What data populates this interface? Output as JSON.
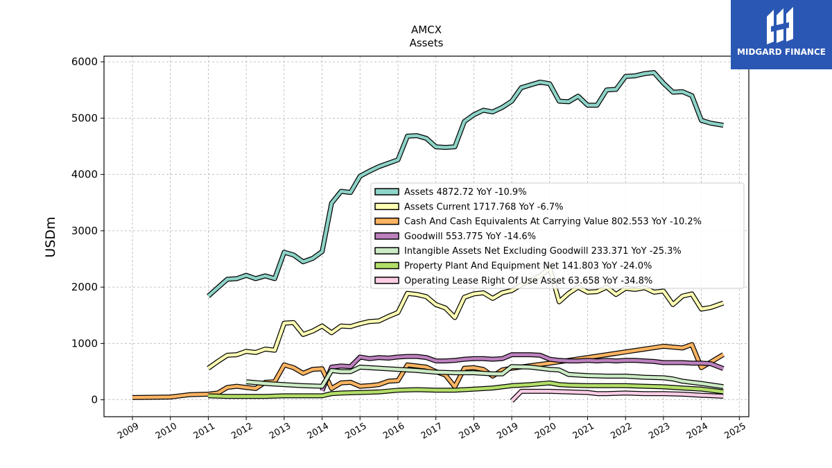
{
  "brand": {
    "name": "MIDGARD FINANCE",
    "bg_color": "#2a57b3"
  },
  "chart_data": {
    "type": "line",
    "title": "AMCX",
    "subtitle": "Assets",
    "ylabel": "USDm",
    "xlabel": "",
    "xlim": [
      2008.25,
      2025.25
    ],
    "ylim": [
      -300,
      6100
    ],
    "yticks": [
      0,
      1000,
      2000,
      3000,
      4000,
      5000,
      6000
    ],
    "xticks": [
      2009,
      2010,
      2011,
      2012,
      2013,
      2014,
      2015,
      2016,
      2017,
      2018,
      2019,
      2020,
      2021,
      2022,
      2023,
      2024,
      2025
    ],
    "grid": true,
    "legend_position": "center-right",
    "series": [
      {
        "name": "Assets",
        "legend": "Assets  4872.72 YoY -10.9%",
        "color": "#8dd3c7",
        "points": [
          [
            2011.0,
            1840
          ],
          [
            2011.25,
            1990
          ],
          [
            2011.5,
            2140
          ],
          [
            2011.75,
            2150
          ],
          [
            2012.0,
            2210
          ],
          [
            2012.25,
            2150
          ],
          [
            2012.5,
            2200
          ],
          [
            2012.75,
            2150
          ],
          [
            2013.0,
            2620
          ],
          [
            2013.25,
            2570
          ],
          [
            2013.5,
            2450
          ],
          [
            2013.75,
            2510
          ],
          [
            2014.0,
            2630
          ],
          [
            2014.25,
            3490
          ],
          [
            2014.5,
            3700
          ],
          [
            2014.75,
            3680
          ],
          [
            2015.0,
            3970
          ],
          [
            2015.25,
            4060
          ],
          [
            2015.5,
            4140
          ],
          [
            2015.75,
            4200
          ],
          [
            2016.0,
            4260
          ],
          [
            2016.25,
            4680
          ],
          [
            2016.5,
            4690
          ],
          [
            2016.75,
            4640
          ],
          [
            2017.0,
            4490
          ],
          [
            2017.25,
            4480
          ],
          [
            2017.5,
            4490
          ],
          [
            2017.75,
            4940
          ],
          [
            2018.0,
            5060
          ],
          [
            2018.25,
            5140
          ],
          [
            2018.5,
            5110
          ],
          [
            2018.75,
            5190
          ],
          [
            2019.0,
            5300
          ],
          [
            2019.25,
            5540
          ],
          [
            2019.5,
            5590
          ],
          [
            2019.75,
            5640
          ],
          [
            2020.0,
            5610
          ],
          [
            2020.25,
            5300
          ],
          [
            2020.5,
            5290
          ],
          [
            2020.75,
            5390
          ],
          [
            2021.0,
            5230
          ],
          [
            2021.25,
            5230
          ],
          [
            2021.5,
            5500
          ],
          [
            2021.75,
            5510
          ],
          [
            2022.0,
            5740
          ],
          [
            2022.25,
            5750
          ],
          [
            2022.5,
            5790
          ],
          [
            2022.75,
            5810
          ],
          [
            2023.0,
            5620
          ],
          [
            2023.25,
            5460
          ],
          [
            2023.5,
            5470
          ],
          [
            2023.75,
            5400
          ],
          [
            2024.0,
            4960
          ],
          [
            2024.25,
            4910
          ],
          [
            2024.58,
            4872.72
          ]
        ]
      },
      {
        "name": "Assets Current",
        "legend": "Assets Current  1717.768 YoY -6.7%",
        "color": "#ffffb3",
        "points": [
          [
            2011.0,
            560
          ],
          [
            2011.25,
            680
          ],
          [
            2011.5,
            790
          ],
          [
            2011.75,
            800
          ],
          [
            2012.0,
            860
          ],
          [
            2012.25,
            840
          ],
          [
            2012.5,
            900
          ],
          [
            2012.75,
            880
          ],
          [
            2013.0,
            1360
          ],
          [
            2013.25,
            1370
          ],
          [
            2013.5,
            1160
          ],
          [
            2013.75,
            1220
          ],
          [
            2014.0,
            1310
          ],
          [
            2014.25,
            1190
          ],
          [
            2014.5,
            1310
          ],
          [
            2014.75,
            1300
          ],
          [
            2015.0,
            1350
          ],
          [
            2015.25,
            1390
          ],
          [
            2015.5,
            1400
          ],
          [
            2015.75,
            1480
          ],
          [
            2016.0,
            1550
          ],
          [
            2016.25,
            1890
          ],
          [
            2016.5,
            1870
          ],
          [
            2016.75,
            1830
          ],
          [
            2017.0,
            1690
          ],
          [
            2017.25,
            1630
          ],
          [
            2017.5,
            1460
          ],
          [
            2017.75,
            1820
          ],
          [
            2018.0,
            1880
          ],
          [
            2018.25,
            1900
          ],
          [
            2018.5,
            1800
          ],
          [
            2018.75,
            1900
          ],
          [
            2019.0,
            1940
          ],
          [
            2019.25,
            2040
          ],
          [
            2019.5,
            2120
          ],
          [
            2019.75,
            2200
          ],
          [
            2020.0,
            2340
          ],
          [
            2020.25,
            1740
          ],
          [
            2020.5,
            1890
          ],
          [
            2020.75,
            2000
          ],
          [
            2021.0,
            1910
          ],
          [
            2021.25,
            1920
          ],
          [
            2021.5,
            2000
          ],
          [
            2021.75,
            1870
          ],
          [
            2022.0,
            1980
          ],
          [
            2022.25,
            1960
          ],
          [
            2022.5,
            1990
          ],
          [
            2022.75,
            1910
          ],
          [
            2023.0,
            1930
          ],
          [
            2023.25,
            1690
          ],
          [
            2023.5,
            1840
          ],
          [
            2023.75,
            1880
          ],
          [
            2024.0,
            1610
          ],
          [
            2024.25,
            1640
          ],
          [
            2024.58,
            1717.768
          ]
        ]
      },
      {
        "name": "Cash And Cash Equivalents At Carrying Value",
        "legend": "Cash And Cash Equivalents At Carrying Value  802.553 YoY -10.2%",
        "color": "#fdb462",
        "points": [
          [
            2009.0,
            40
          ],
          [
            2010.0,
            50
          ],
          [
            2010.5,
            90
          ],
          [
            2011.0,
            100
          ],
          [
            2011.25,
            120
          ],
          [
            2011.5,
            220
          ],
          [
            2011.75,
            240
          ],
          [
            2012.0,
            220
          ],
          [
            2012.25,
            200
          ],
          [
            2012.5,
            310
          ],
          [
            2012.75,
            320
          ],
          [
            2013.0,
            620
          ],
          [
            2013.25,
            570
          ],
          [
            2013.5,
            470
          ],
          [
            2013.75,
            540
          ],
          [
            2014.0,
            550
          ],
          [
            2014.25,
            200
          ],
          [
            2014.5,
            300
          ],
          [
            2014.75,
            310
          ],
          [
            2015.0,
            240
          ],
          [
            2015.25,
            250
          ],
          [
            2015.5,
            270
          ],
          [
            2015.75,
            330
          ],
          [
            2016.0,
            340
          ],
          [
            2016.25,
            620
          ],
          [
            2016.5,
            600
          ],
          [
            2016.75,
            580
          ],
          [
            2017.0,
            500
          ],
          [
            2017.25,
            440
          ],
          [
            2017.5,
            230
          ],
          [
            2017.75,
            560
          ],
          [
            2018.0,
            570
          ],
          [
            2018.25,
            540
          ],
          [
            2018.5,
            420
          ],
          [
            2018.75,
            530
          ],
          [
            2019.0,
            560
          ],
          [
            2020.0,
            650
          ],
          [
            2022.0,
            850
          ],
          [
            2023.0,
            950
          ],
          [
            2023.5,
            920
          ],
          [
            2023.75,
            980
          ],
          [
            2024.0,
            570
          ],
          [
            2024.58,
            802.553
          ]
        ]
      },
      {
        "name": "Goodwill",
        "legend": "Goodwill  553.775 YoY -14.6%",
        "color": "#bc80bd",
        "points": [
          [
            2014.0,
            160
          ],
          [
            2014.25,
            580
          ],
          [
            2014.5,
            600
          ],
          [
            2014.75,
            590
          ],
          [
            2015.0,
            760
          ],
          [
            2015.25,
            730
          ],
          [
            2015.5,
            750
          ],
          [
            2015.75,
            740
          ],
          [
            2016.0,
            760
          ],
          [
            2016.25,
            770
          ],
          [
            2016.5,
            770
          ],
          [
            2016.75,
            750
          ],
          [
            2017.0,
            690
          ],
          [
            2017.25,
            690
          ],
          [
            2017.5,
            700
          ],
          [
            2017.75,
            720
          ],
          [
            2018.0,
            730
          ],
          [
            2018.25,
            730
          ],
          [
            2018.5,
            720
          ],
          [
            2018.75,
            730
          ],
          [
            2019.0,
            800
          ],
          [
            2019.25,
            800
          ],
          [
            2019.5,
            800
          ],
          [
            2019.75,
            790
          ],
          [
            2020.0,
            720
          ],
          [
            2020.25,
            700
          ],
          [
            2020.5,
            690
          ],
          [
            2020.75,
            690
          ],
          [
            2021.0,
            700
          ],
          [
            2021.25,
            690
          ],
          [
            2021.5,
            700
          ],
          [
            2021.75,
            690
          ],
          [
            2022.0,
            700
          ],
          [
            2022.25,
            700
          ],
          [
            2022.5,
            690
          ],
          [
            2022.75,
            680
          ],
          [
            2023.0,
            660
          ],
          [
            2023.25,
            660
          ],
          [
            2023.5,
            660
          ],
          [
            2023.75,
            650
          ],
          [
            2024.0,
            650
          ],
          [
            2024.25,
            640
          ],
          [
            2024.58,
            553.775
          ]
        ]
      },
      {
        "name": "Intangible Assets Net Excluding Goodwill",
        "legend": "Intangible Assets Net Excluding Goodwill  233.371 YoY -25.3%",
        "color": "#ccebc5",
        "points": [
          [
            2012.0,
            320
          ],
          [
            2012.5,
            290
          ],
          [
            2013.0,
            270
          ],
          [
            2013.5,
            250
          ],
          [
            2014.0,
            240
          ],
          [
            2014.25,
            520
          ],
          [
            2014.5,
            500
          ],
          [
            2014.75,
            500
          ],
          [
            2015.0,
            580
          ],
          [
            2015.5,
            560
          ],
          [
            2016.0,
            540
          ],
          [
            2016.5,
            520
          ],
          [
            2017.0,
            490
          ],
          [
            2017.5,
            480
          ],
          [
            2018.0,
            480
          ],
          [
            2018.5,
            460
          ],
          [
            2018.75,
            460
          ],
          [
            2019.0,
            590
          ],
          [
            2019.5,
            580
          ],
          [
            2020.0,
            540
          ],
          [
            2020.25,
            530
          ],
          [
            2020.5,
            450
          ],
          [
            2021.0,
            430
          ],
          [
            2021.5,
            420
          ],
          [
            2022.0,
            420
          ],
          [
            2022.5,
            400
          ],
          [
            2023.0,
            390
          ],
          [
            2023.25,
            370
          ],
          [
            2023.5,
            330
          ],
          [
            2024.0,
            290
          ],
          [
            2024.58,
            233.371
          ]
        ]
      },
      {
        "name": "Property Plant And Equipment Net",
        "legend": "Property Plant And Equipment Net  141.803 YoY -24.0%",
        "color": "#b3de69",
        "points": [
          [
            2011.0,
            70
          ],
          [
            2011.5,
            60
          ],
          [
            2012.0,
            60
          ],
          [
            2012.5,
            60
          ],
          [
            2013.0,
            70
          ],
          [
            2013.5,
            70
          ],
          [
            2014.0,
            70
          ],
          [
            2014.25,
            110
          ],
          [
            2014.5,
            120
          ],
          [
            2015.0,
            130
          ],
          [
            2015.5,
            140
          ],
          [
            2016.0,
            170
          ],
          [
            2016.5,
            180
          ],
          [
            2017.0,
            170
          ],
          [
            2017.5,
            170
          ],
          [
            2018.0,
            190
          ],
          [
            2018.5,
            210
          ],
          [
            2019.0,
            250
          ],
          [
            2019.5,
            270
          ],
          [
            2020.0,
            300
          ],
          [
            2020.25,
            270
          ],
          [
            2020.5,
            260
          ],
          [
            2021.0,
            250
          ],
          [
            2021.5,
            250
          ],
          [
            2022.0,
            250
          ],
          [
            2022.5,
            240
          ],
          [
            2023.0,
            230
          ],
          [
            2023.5,
            210
          ],
          [
            2024.0,
            190
          ],
          [
            2024.58,
            141.803
          ]
        ]
      },
      {
        "name": "Operating Lease Right Of Use Asset",
        "legend": "Operating Lease Right Of Use Asset  63.658 YoY -34.8%",
        "color": "#fccde5",
        "points": [
          [
            2019.0,
            -20
          ],
          [
            2019.25,
            150
          ],
          [
            2020.0,
            150
          ],
          [
            2020.5,
            140
          ],
          [
            2021.0,
            130
          ],
          [
            2021.25,
            110
          ],
          [
            2021.5,
            110
          ],
          [
            2022.0,
            120
          ],
          [
            2022.5,
            110
          ],
          [
            2023.0,
            110
          ],
          [
            2023.5,
            100
          ],
          [
            2024.0,
            80
          ],
          [
            2024.58,
            63.658
          ]
        ]
      }
    ]
  }
}
